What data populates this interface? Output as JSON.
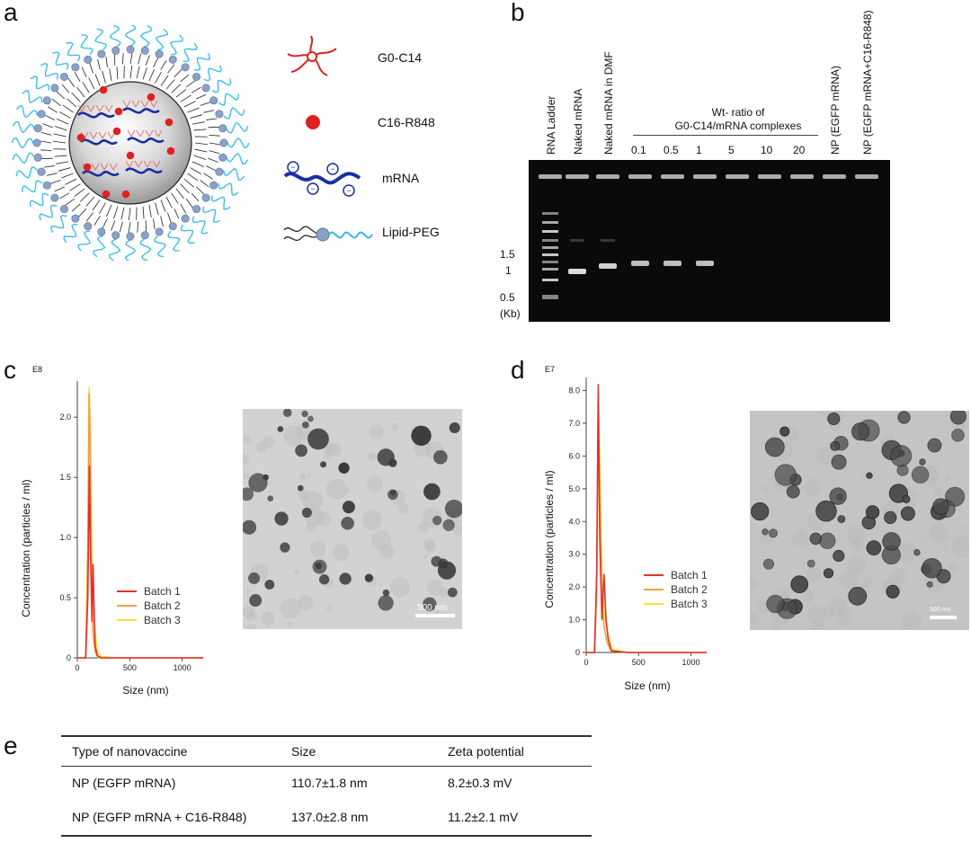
{
  "panels": {
    "a": "a",
    "b": "b",
    "c": "c",
    "d": "d",
    "e": "e"
  },
  "panel_a": {
    "legend": [
      {
        "label": "G0-C14",
        "icon": "star-molecule-icon",
        "color": "#e02020"
      },
      {
        "label": "C16-R848",
        "icon": "red-dot-icon",
        "color": "#e02020"
      },
      {
        "label": "mRNA",
        "icon": "mrna-strand-icon",
        "color": "#1a2fa0"
      },
      {
        "label": "Lipid-PEG",
        "icon": "lipid-peg-icon",
        "color": "#35b8e0"
      }
    ]
  },
  "panel_b": {
    "lanes": [
      "RNA Ladder",
      "Naked mRNA",
      "Naked mRNA in DMF",
      "0.1",
      "0.5",
      "1",
      "5",
      "10",
      "20",
      "NP (EGFP mRNA)",
      "NP (EGFP mRNA+C16-R848)"
    ],
    "group_label_line1": "Wt- ratio of",
    "group_label_line2": "G0-C14/mRNA complexes",
    "size_labels": [
      "1.5",
      "1",
      "0.5",
      "(Kb)"
    ]
  },
  "chart_data": [
    {
      "type": "line",
      "panel": "c",
      "exponent_label": "E8",
      "ylabel": "Concentration (particles / ml)",
      "xlabel": "Size (nm)",
      "xlim": [
        0,
        1200
      ],
      "ylim": [
        0,
        2.3
      ],
      "xticks": [
        "0",
        "500",
        "1000"
      ],
      "yticks": [
        "0",
        "0.5",
        "1.0",
        "1.5",
        "2.0"
      ],
      "series": [
        {
          "name": "Batch 1",
          "color": "#e23030",
          "x": [
            0,
            80,
            100,
            115,
            125,
            140,
            150,
            160,
            170,
            190,
            230,
            400,
            1200
          ],
          "y": [
            0,
            0,
            0.5,
            1.6,
            0.9,
            0.3,
            0.78,
            0.4,
            0.1,
            0.02,
            0,
            0,
            0
          ]
        },
        {
          "name": "Batch 2",
          "color": "#f0a040",
          "x": [
            0,
            80,
            100,
            112,
            122,
            135,
            150,
            170,
            200,
            400,
            1200
          ],
          "y": [
            0,
            0,
            0.9,
            2.2,
            1.8,
            0.6,
            0.2,
            0.05,
            0,
            0,
            0
          ]
        },
        {
          "name": "Batch 3",
          "color": "#f5e33a",
          "x": [
            0,
            80,
            100,
            112,
            125,
            140,
            160,
            190,
            230,
            400,
            1200
          ],
          "y": [
            0,
            0,
            1.0,
            2.25,
            1.9,
            0.8,
            0.3,
            0.05,
            0.01,
            0,
            0
          ]
        }
      ],
      "legend": "center-right"
    },
    {
      "type": "line",
      "panel": "d",
      "exponent_label": "E7",
      "ylabel": "Concentration (particles / ml)",
      "xlabel": "Size (nm)",
      "xlim": [
        0,
        1150
      ],
      "ylim": [
        0,
        8.4
      ],
      "xticks": [
        "0",
        "500",
        "1000"
      ],
      "yticks": [
        "0",
        "1.0",
        "2.0",
        "3.0",
        "4.0",
        "5.0",
        "6.0",
        "7.0",
        "8.0"
      ],
      "series": [
        {
          "name": "Batch 1",
          "color": "#e23030",
          "x": [
            0,
            80,
            100,
            115,
            130,
            150,
            170,
            190,
            210,
            240,
            400,
            1150
          ],
          "y": [
            0,
            0,
            2.5,
            8.2,
            3.5,
            1.0,
            2.4,
            1.0,
            0.4,
            0.05,
            0,
            0
          ]
        },
        {
          "name": "Batch 2",
          "color": "#f0a040",
          "x": [
            0,
            80,
            100,
            115,
            130,
            150,
            170,
            200,
            240,
            400,
            1150
          ],
          "y": [
            0,
            0,
            2.0,
            7.5,
            4.5,
            1.5,
            0.8,
            0.3,
            0.05,
            0,
            0
          ]
        },
        {
          "name": "Batch 3",
          "color": "#f5e33a",
          "x": [
            0,
            80,
            100,
            118,
            135,
            155,
            180,
            210,
            250,
            400,
            1150
          ],
          "y": [
            0,
            0,
            1.8,
            7.6,
            5.0,
            2.0,
            1.0,
            0.5,
            0.1,
            0,
            0
          ]
        }
      ],
      "legend": "center-right"
    }
  ],
  "tem": {
    "c_scale": "500 nm",
    "d_scale": "500 nm"
  },
  "table": {
    "headers": [
      "Type of nanovaccine",
      "Size",
      "Zeta potential"
    ],
    "rows": [
      [
        "NP (EGFP mRNA)",
        "110.7±1.8 nm",
        "8.2±0.3 mV"
      ],
      [
        "NP (EGFP mRNA + C16-R848)",
        "137.0±2.8 nm",
        "11.2±2.1 mV"
      ]
    ]
  }
}
